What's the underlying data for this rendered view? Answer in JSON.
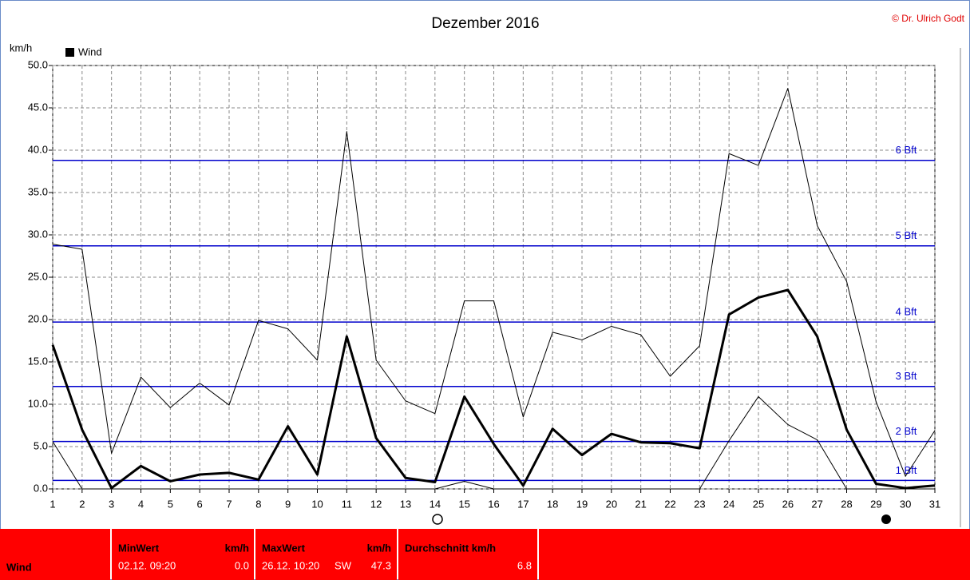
{
  "chart_data": {
    "type": "line",
    "title": "Dezember 2016",
    "credit": "© Dr. Ulrich Godt",
    "ylabel": "km/h",
    "x": [
      1,
      2,
      3,
      4,
      5,
      6,
      7,
      8,
      9,
      10,
      11,
      12,
      13,
      14,
      15,
      16,
      17,
      18,
      19,
      20,
      21,
      22,
      23,
      24,
      25,
      26,
      27,
      28,
      29,
      30,
      31
    ],
    "xlim": [
      1,
      31
    ],
    "xticks": [
      1,
      2,
      3,
      4,
      5,
      6,
      7,
      8,
      9,
      10,
      11,
      12,
      13,
      14,
      15,
      16,
      17,
      18,
      19,
      20,
      21,
      22,
      23,
      24,
      25,
      26,
      27,
      28,
      29,
      30,
      31
    ],
    "ylim": [
      0,
      50
    ],
    "yticks": [
      {
        "value": 0,
        "label": "0.0"
      },
      {
        "value": 5,
        "label": "5.0"
      },
      {
        "value": 10,
        "label": "10.0"
      },
      {
        "value": 15,
        "label": "15.0"
      },
      {
        "value": 20,
        "label": "20.0"
      },
      {
        "value": 25,
        "label": "25.0"
      },
      {
        "value": 30,
        "label": "30.0"
      },
      {
        "value": 35,
        "label": "35.0"
      },
      {
        "value": 40,
        "label": "40.0"
      },
      {
        "value": 45,
        "label": "45.0"
      },
      {
        "value": 50,
        "label": "50.0"
      }
    ],
    "grid": true,
    "series": [
      {
        "name": "Wind",
        "color": "#000000",
        "width": 3,
        "values": [
          17.0,
          7.0,
          0.1,
          2.7,
          0.9,
          1.7,
          1.9,
          1.1,
          7.4,
          1.7,
          18.0,
          6.0,
          1.3,
          0.8,
          10.9,
          5.3,
          0.4,
          7.1,
          4.0,
          6.5,
          5.5,
          5.4,
          4.8,
          20.6,
          22.6,
          23.5,
          18.0,
          7.0,
          0.6,
          0.1,
          0.4
        ]
      },
      {
        "color": "#000000",
        "width": 1,
        "values": [
          28.9,
          28.3,
          4.2,
          13.2,
          9.6,
          12.5,
          9.9,
          19.9,
          18.9,
          15.2,
          42.2,
          15.2,
          10.4,
          8.9,
          22.2,
          22.2,
          8.5,
          18.5,
          17.6,
          19.2,
          18.2,
          13.3,
          16.9,
          39.6,
          38.2,
          47.3,
          31.1,
          24.5,
          10.3,
          1.5,
          6.9
        ]
      },
      {
        "color": "#000000",
        "width": 1,
        "values": [
          5.6,
          0,
          0,
          0,
          0,
          0,
          0,
          0,
          0,
          0,
          0,
          0,
          0,
          0,
          0.9,
          0,
          0,
          0,
          0,
          0,
          0,
          0,
          0,
          5.7,
          10.9,
          7.6,
          5.8,
          0,
          0,
          0,
          0
        ]
      }
    ],
    "reference_lines": [
      {
        "label": "6 Bft",
        "value": 38.8,
        "color": "#0000cc"
      },
      {
        "label": "5 Bft",
        "value": 28.7,
        "color": "#0000cc"
      },
      {
        "label": "4 Bft",
        "value": 19.7,
        "color": "#0000cc"
      },
      {
        "label": "3 Bft",
        "value": 12.1,
        "color": "#0000cc"
      },
      {
        "label": "2 Bft",
        "value": 5.6,
        "color": "#0000cc"
      },
      {
        "label": "1 Bft",
        "value": 1.0,
        "color": "#0000cc"
      }
    ]
  },
  "summary": {
    "label": "Wind",
    "min": {
      "header": "MinWert",
      "unit": "km/h",
      "time": "02.12.  09:20",
      "value": "0.0"
    },
    "max": {
      "header": "MaxWert",
      "unit": "km/h",
      "time": "26.12.  10:20",
      "dir": "SW",
      "value": "47.3"
    },
    "avg": {
      "header": "Durchschnitt km/h",
      "value": "6.8"
    }
  }
}
